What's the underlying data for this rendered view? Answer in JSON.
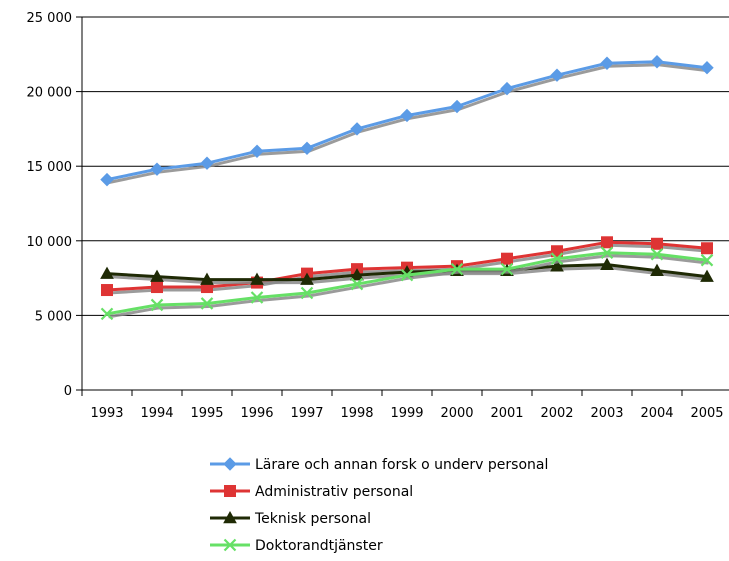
{
  "chart_data": {
    "type": "line",
    "title": "",
    "xlabel": "",
    "ylabel": "",
    "categories": [
      "1993",
      "1994",
      "1995",
      "1996",
      "1997",
      "1998",
      "1999",
      "2000",
      "2001",
      "2002",
      "2003",
      "2004",
      "2005"
    ],
    "y_ticks": [
      "0",
      "5 000",
      "10 000",
      "15 000",
      "20 000",
      "25 000"
    ],
    "ylim": [
      0,
      25000
    ],
    "grid": true,
    "legend_position": "bottom",
    "series": [
      {
        "name": "Lärare och annan forsk o underv personal",
        "marker": "diamond",
        "color": "#5B9BE6",
        "values": [
          14100,
          14800,
          15200,
          16000,
          16200,
          17500,
          18400,
          19000,
          20200,
          21100,
          21900,
          22000,
          21600
        ]
      },
      {
        "name": "Administrativ personal",
        "marker": "square",
        "color": "#DE3434",
        "values": [
          6700,
          6900,
          6900,
          7200,
          7800,
          8100,
          8200,
          8300,
          8800,
          9300,
          9900,
          9800,
          9500
        ]
      },
      {
        "name": "Teknisk personal",
        "marker": "triangle",
        "color": "#1F2A05",
        "values": [
          7800,
          7600,
          7400,
          7400,
          7400,
          7700,
          7900,
          8000,
          8000,
          8300,
          8400,
          8000,
          7600
        ]
      },
      {
        "name": "Doktorandtjänster",
        "marker": "x",
        "color": "#66E066",
        "values": [
          5100,
          5700,
          5800,
          6200,
          6500,
          7100,
          7700,
          8100,
          8100,
          8800,
          9200,
          9100,
          8700
        ]
      }
    ]
  }
}
